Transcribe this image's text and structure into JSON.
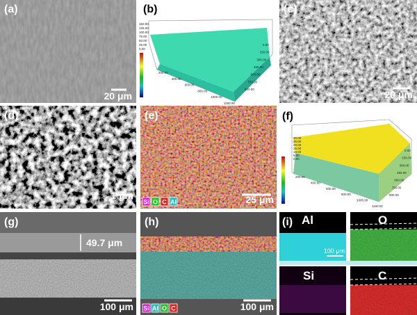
{
  "panels": {
    "a": {
      "label": "(a)",
      "scale_bar": "20 μm"
    },
    "b": {
      "label": "(b)",
      "colorbar_ticks": [
        "150.00",
        "125.00",
        "100.00",
        "75.00",
        "50.00",
        "25.00",
        "0.00"
      ],
      "x_ticks": [
        "200.00",
        "400.00",
        "600.00",
        "800.00",
        "1000.00",
        "1160.00"
      ],
      "y_ticks": [
        "0.00",
        "150.00",
        "300.00",
        "450.00",
        "600.00",
        "750.00",
        "900.00"
      ]
    },
    "c": {
      "label": "(c)",
      "scale_bar": "20 μm"
    },
    "d": {
      "label": "(d)",
      "scale_bar": "1 μm"
    },
    "e": {
      "label": "(e)",
      "scale_bar": "25 μm",
      "legend": [
        "Si",
        "O",
        "C",
        "Al"
      ]
    },
    "f": {
      "label": "(f)",
      "colorbar_ticks": [
        "30.00",
        "25.00",
        "20.00",
        "15.00",
        "10.00",
        "5.00",
        "0.00"
      ],
      "x_ticks": [
        "200.00",
        "400.00",
        "600.00",
        "800.00",
        "1000.00",
        "1160.02"
      ],
      "y_ticks": [
        "0.00",
        "150.00",
        "300.00",
        "450.00",
        "600.00",
        "750.00",
        "900.00"
      ]
    },
    "g": {
      "label": "(g)",
      "thickness": "49.7 μm",
      "scale_bar": "100 μm"
    },
    "h": {
      "label": "(h)",
      "scale_bar": "100 μm",
      "legend": [
        "Si",
        "Al",
        "O",
        "C"
      ]
    },
    "i": {
      "label": "(i)",
      "maps": [
        "Al",
        "O",
        "Si",
        "C"
      ],
      "scale_bar": "100 μm"
    }
  }
}
